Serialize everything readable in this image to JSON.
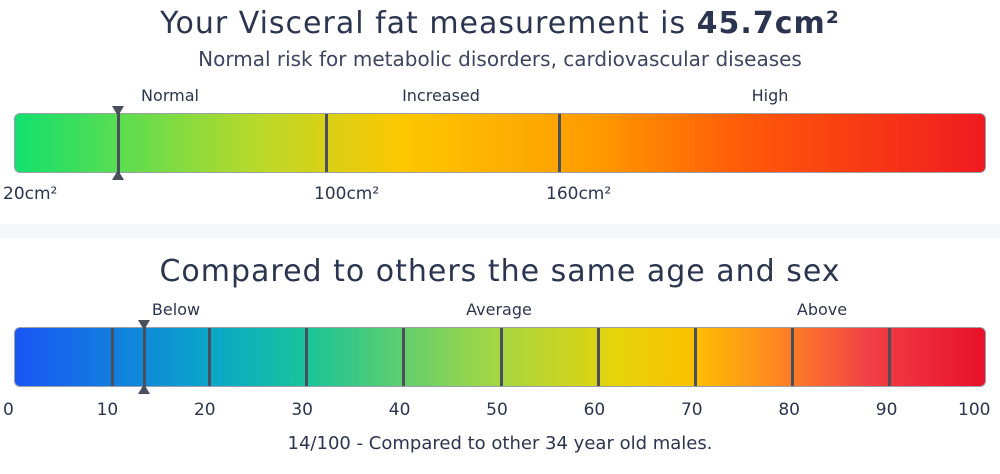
{
  "visceral": {
    "title_prefix": "Your Visceral fat measurement is",
    "value_text": "45.7cm²",
    "subtitle": "Normal risk for metabolic disorders, cardiovascular diseases",
    "zones": [
      "Normal",
      "Increased",
      "High"
    ],
    "ticks": [
      "20cm²",
      "100cm²",
      "160cm²"
    ],
    "measured_value": 45.7
  },
  "comparison": {
    "title": "Compared to others the same age and sex",
    "zones": [
      "Below",
      "Average",
      "Above"
    ],
    "ticks": [
      "0",
      "10",
      "20",
      "30",
      "40",
      "50",
      "60",
      "70",
      "80",
      "90",
      "100"
    ],
    "score": 14,
    "footer": "14/100 - Compared to other 34 year old males."
  },
  "colors": {
    "text": "#2b3550",
    "divider": "#4a4f5c",
    "background": "#f4f6fa"
  }
}
